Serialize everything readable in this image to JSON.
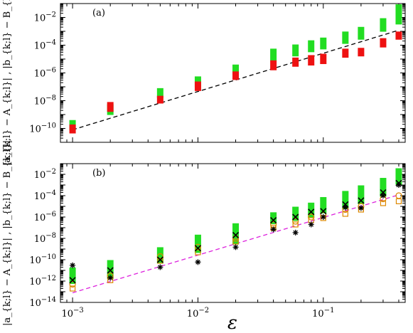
{
  "colors": {
    "green": "#22dd22",
    "red": "#ee1111",
    "black": "#000000",
    "orange": "#dd8800",
    "fit_a": "#000000",
    "fit_b": "#dd22dd"
  },
  "xlabel": "ε",
  "shared_x_ticks": [
    "10^-3",
    "10^-2",
    "10^-1"
  ],
  "chart_data": [
    {
      "type": "scatter",
      "panel_label": "(a)",
      "ylabel": "|a_{k;l} − A_{k;l}| , |b_{k;l} − B_{k;l}|",
      "x_scale": "log",
      "y_scale": "log",
      "xlim": [
        0.0008,
        0.45
      ],
      "ylim": [
        1e-11,
        0.1
      ],
      "x_ticks": [
        "10^-3",
        "10^-2",
        "10^-1"
      ],
      "y_ticks": [
        "10^-10",
        "10^-8",
        "10^-6",
        "10^-4",
        "10^-2"
      ],
      "x": [
        0.001,
        0.002,
        0.005,
        0.01,
        0.02,
        0.04,
        0.06,
        0.08,
        0.1,
        0.15,
        0.2,
        0.3,
        0.4
      ],
      "series": [
        {
          "marker": "green-squares",
          "low": [
            1.2e-10,
            1.5e-09,
            2.5e-08,
            1.5e-07,
            1.2e-06,
            1.2e-05,
            2.5e-05,
            5e-05,
            8e-05,
            0.0002,
            0.0004,
            0.0015,
            0.005
          ],
          "high": [
            2.5e-10,
            3.5e-09,
            5e-08,
            3.5e-07,
            2.5e-06,
            3.5e-05,
            7e-05,
            0.00014,
            0.00022,
            0.0006,
            0.0013,
            0.0055,
            0.055
          ]
        },
        {
          "marker": "red-squares",
          "low": [
            7e-11,
            2.5e-09,
            1e-08,
            8e-08,
            5e-07,
            2.5e-06,
            4.5e-06,
            5.5e-06,
            7e-06,
            2e-05,
            2.5e-05,
            0.00011,
            0.0004
          ],
          "high": [
            1.2e-10,
            5e-09,
            1.4e-08,
            1.5e-07,
            8e-07,
            5e-06,
            8e-06,
            1.2e-05,
            1.5e-05,
            3.5e-05,
            4e-05,
            0.0002,
            0.0006
          ]
        }
      ],
      "fit_line": {
        "style": "dashed",
        "x": [
          0.001,
          0.4
        ],
        "y": [
          8e-11,
          0.0012
        ]
      }
    },
    {
      "type": "scatter",
      "panel_label": "(b)",
      "ylabel": "|a_{k;l} − A_{k;l}| , |b_{k;l} − B_{k;l}|",
      "x_scale": "log",
      "y_scale": "log",
      "xlim": [
        0.0008,
        0.45
      ],
      "ylim": [
        1e-14,
        0.1
      ],
      "x_ticks": [
        "10^-3",
        "10^-2",
        "10^-1"
      ],
      "y_ticks": [
        "10^-14",
        "10^-12",
        "10^-10",
        "10^-8",
        "10^-6",
        "10^-4",
        "10^-2"
      ],
      "x": [
        0.001,
        0.002,
        0.005,
        0.01,
        0.02,
        0.04,
        0.06,
        0.08,
        0.1,
        0.15,
        0.2,
        0.3,
        0.4
      ],
      "series": [
        {
          "marker": "green-squares",
          "low": [
            1e-12,
            3e-12,
            8e-11,
            8e-10,
            5e-09,
            4e-07,
            8e-07,
            1.5e-06,
            4e-06,
            1e-05,
            3e-05,
            0.00015,
            0.002
          ],
          "high": [
            1e-11,
            5e-11,
            8e-10,
            1.2e-08,
            1.4e-07,
            1.5e-06,
            5e-06,
            1.2e-05,
            4e-05,
            0.00015,
            0.0005,
            0.0025,
            0.02
          ]
        },
        {
          "marker": "orange-squares",
          "points": [
            2e-13,
            1.2e-12,
            8e-11,
            5e-10,
            5e-09,
            1e-07,
            2e-07,
            5e-07,
            8e-07,
            2e-06,
            5e-06,
            2e-05,
            3e-05
          ]
        },
        {
          "marker": "orange-circles",
          "points": [
            5e-13,
            3e-12,
            2e-10,
            1.5e-09,
            1e-08,
            2e-07,
            4e-07,
            1e-06,
            1.5e-06,
            5e-06,
            1e-05,
            5e-05,
            0.0001
          ]
        },
        {
          "marker": "black-crosses",
          "points": [
            1.2e-12,
            1e-11,
            1e-10,
            1.2e-09,
            2e-08,
            5e-07,
            1e-06,
            3e-06,
            3.5e-06,
            1.5e-05,
            3.5e-05,
            0.0002,
            0.0015
          ]
        },
        {
          "marker": "black-asterisks",
          "points": [
            3e-11,
            2e-12,
            2e-11,
            6e-11,
            1.5e-09,
            7e-08,
            3.5e-08,
            2e-07,
            1e-06,
            8e-06,
            7e-06,
            0.0001,
            0.001
          ]
        }
      ],
      "fit_line": {
        "style": "dashed",
        "x": [
          0.001,
          0.4
        ],
        "y": [
          8e-14,
          0.00012
        ]
      }
    }
  ]
}
